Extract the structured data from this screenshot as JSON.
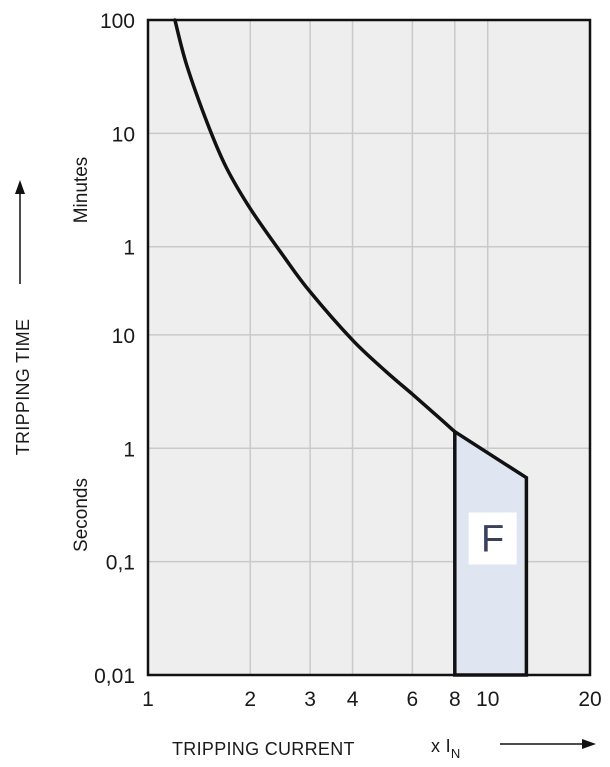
{
  "chart_data": {
    "type": "line",
    "x_scale": "log",
    "y_scale": "log",
    "xlim": [
      1,
      20
    ],
    "ylim_seconds": [
      0.01,
      6000
    ],
    "grid": true,
    "xlabel": "TRIPPING CURRENT",
    "xlabel_unit_prefix": "x I",
    "xlabel_unit_subscript": "N",
    "ylabel": "TRIPPING TIME",
    "y_units": [
      {
        "label": "Minutes",
        "range_seconds": [
          60,
          6000
        ]
      },
      {
        "label": "Seconds",
        "range_seconds": [
          0.01,
          60
        ]
      }
    ],
    "x_ticks": [
      {
        "label": "1",
        "value": 1
      },
      {
        "label": "2",
        "value": 2
      },
      {
        "label": "3",
        "value": 3
      },
      {
        "label": "4",
        "value": 4
      },
      {
        "label": "6",
        "value": 6
      },
      {
        "label": "8",
        "value": 8
      },
      {
        "label": "10",
        "value": 10
      },
      {
        "label": "20",
        "value": 20
      }
    ],
    "y_ticks": [
      {
        "label": "100",
        "seconds": 6000
      },
      {
        "label": "10",
        "seconds": 600
      },
      {
        "label": "1",
        "seconds": 60
      },
      {
        "label": "10",
        "seconds": 10
      },
      {
        "label": "1",
        "seconds": 1
      },
      {
        "label": "0,1",
        "seconds": 0.1
      },
      {
        "label": "0,01",
        "seconds": 0.01
      }
    ],
    "series": [
      {
        "type": "curve",
        "x": [
          1.2,
          1.3,
          1.5,
          1.7,
          2.0,
          2.5,
          3.0,
          4.0,
          5.0,
          6.0,
          7.0,
          8.0
        ],
        "y_seconds": [
          6000,
          2400,
          720,
          300,
          130,
          50,
          24,
          9,
          4.8,
          3.0,
          2.0,
          1.4
        ]
      }
    ],
    "zones": [
      {
        "label": "F",
        "x": [
          8.0,
          8.0,
          13.0,
          13.0
        ],
        "y_seconds": [
          0.01,
          1.4,
          0.55,
          0.01
        ],
        "fill": "#dfe5f1"
      }
    ]
  },
  "colors": {
    "plot_background": "#eeeeee",
    "grid": "#c9c9c9",
    "curve": "#111111",
    "zone_fill": "#dfe5f1",
    "label_box": "#ffffff"
  }
}
